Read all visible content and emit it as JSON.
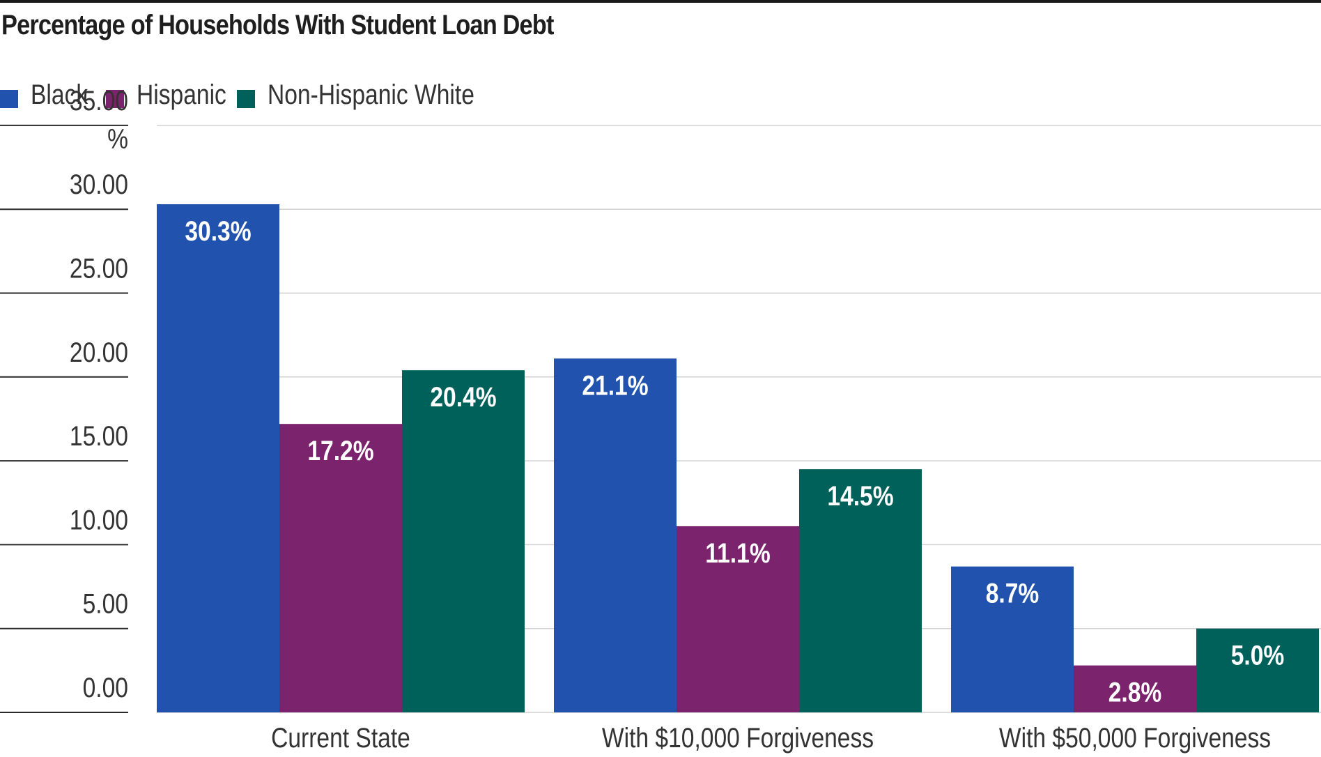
{
  "chart_data": {
    "type": "bar",
    "title": "Percentage of Households With Student Loan Debt",
    "categories": [
      "Current State",
      "With $10,000 Forgiveness",
      "With $50,000 Forgiveness"
    ],
    "series": [
      {
        "name": "Black",
        "color": "#2152ad",
        "values": [
          30.3,
          21.1,
          8.7
        ],
        "labels": [
          "30.3%",
          "21.1%",
          "8.7%"
        ]
      },
      {
        "name": "Hispanic",
        "color": "#7b236c",
        "values": [
          17.2,
          11.1,
          2.8
        ],
        "labels": [
          "17.2%",
          "11.1%",
          "2.8%"
        ]
      },
      {
        "name": "Non-Hispanic White",
        "color": "#00605a",
        "values": [
          20.4,
          14.5,
          5.0
        ],
        "labels": [
          "20.4%",
          "14.5%",
          "5.0%"
        ]
      }
    ],
    "ylim": [
      0,
      35
    ],
    "yticks": [
      0,
      5,
      10,
      15,
      20,
      25,
      30,
      35
    ],
    "ytick_labels": [
      "0.00",
      "5.00",
      "10.00",
      "15.00",
      "20.00",
      "25.00",
      "30.00",
      "35.00"
    ],
    "y_unit": "%",
    "xlabel": "",
    "ylabel": "",
    "grid": true,
    "legend_position": "top-left"
  }
}
